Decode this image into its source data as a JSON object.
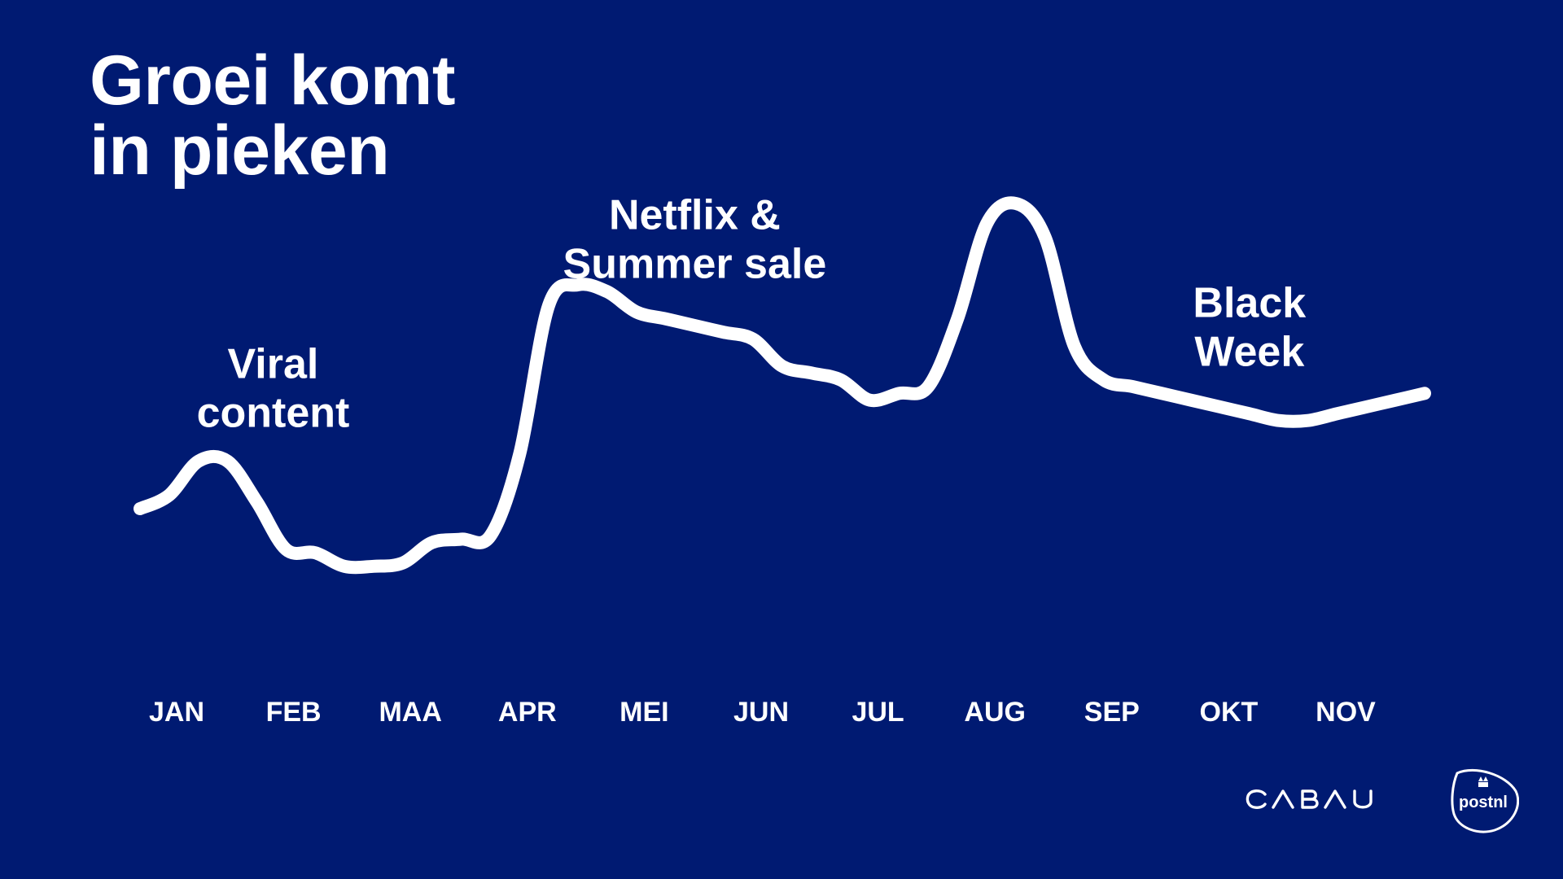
{
  "slide": {
    "title_lines": [
      "Groei komt",
      "in pieken"
    ],
    "background": "#001a72",
    "foreground": "#ffffff"
  },
  "chart_data": {
    "type": "line",
    "title": "Groei komt in pieken",
    "categories": [
      "JAN",
      "FEB",
      "MAA",
      "APR",
      "MEI",
      "JUN",
      "JUL",
      "AUG",
      "SEP",
      "OKT",
      "NOV"
    ],
    "series": [
      {
        "x": [
          0.0,
          0.25,
          0.5,
          0.75,
          1.0,
          1.25,
          1.5,
          1.75,
          2.0,
          2.25,
          2.5,
          2.75,
          3.0,
          3.25,
          3.5,
          3.75,
          4.0,
          4.25,
          4.5,
          4.75,
          5.0,
          5.25,
          5.5,
          5.75,
          6.0,
          6.25,
          6.5,
          6.75,
          7.0,
          7.25,
          7.5,
          7.75,
          8.0,
          8.25,
          8.5,
          8.75,
          9.0,
          9.25,
          9.5,
          9.75,
          10.0,
          10.25,
          10.5,
          10.75,
          11.0
        ],
        "values": [
          12,
          14,
          19,
          19,
          13,
          6,
          5.5,
          3.5,
          3.5,
          4,
          7,
          7.5,
          8,
          20,
          42,
          45,
          44,
          41,
          40,
          39,
          38,
          37,
          33,
          32,
          31,
          28,
          29,
          30,
          40,
          54,
          57,
          52,
          36,
          31,
          30,
          29,
          28,
          27,
          26,
          25,
          25,
          26,
          27,
          28,
          29
        ],
        "color": "#ffffff"
      }
    ],
    "ylim": [
      0,
      60
    ],
    "xlabel": "",
    "ylabel": "",
    "grid": false,
    "annotations": [
      {
        "lines": [
          "Viral",
          "content"
        ],
        "x": 1.0
      },
      {
        "lines": [
          "Netflix &",
          "Summer sale"
        ],
        "x": 4.75
      },
      {
        "lines": [
          "Black",
          "Week"
        ],
        "x": 9.5
      }
    ]
  },
  "logos": {
    "cabau": {
      "text": "CABAU"
    },
    "postnl": {
      "text": "postnl"
    }
  }
}
